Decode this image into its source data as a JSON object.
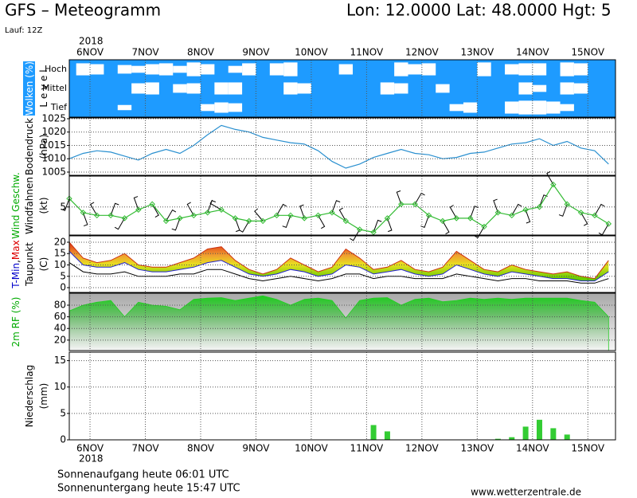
{
  "header": {
    "title": "GFS – Meteogramm",
    "location": "Lon: 12.0000 Lat: 48.0000 Hgt: 5",
    "run": "Lauf: 12Z"
  },
  "x_axis": {
    "xlim": [
      -9,
      228
    ],
    "year": "2018",
    "xticks": [
      {
        "value": 0,
        "label": "6NOV"
      },
      {
        "value": 24,
        "label": "7NOV"
      },
      {
        "value": 48,
        "label": "8NOV"
      },
      {
        "value": 72,
        "label": "9NOV"
      },
      {
        "value": 96,
        "label": "10NOV"
      },
      {
        "value": 120,
        "label": "11NOV"
      },
      {
        "value": 144,
        "label": "12NOV"
      },
      {
        "value": 168,
        "label": "13NOV"
      },
      {
        "value": 192,
        "label": "14NOV"
      },
      {
        "value": 216,
        "label": "15NOV"
      }
    ],
    "x": [
      -9,
      -3,
      3,
      9,
      15,
      21,
      27,
      33,
      39,
      45,
      51,
      57,
      63,
      69,
      75,
      81,
      87,
      93,
      99,
      105,
      111,
      117,
      123,
      129,
      135,
      141,
      147,
      153,
      159,
      165,
      171,
      177,
      183,
      189,
      195,
      201,
      207,
      213,
      219,
      225
    ]
  },
  "chart_data": [
    {
      "type": "cloud_layers",
      "ylabels": [
        [
          {
            "text": "Wolken (%)",
            "color": "#ffffff"
          }
        ],
        [
          {
            "text": "L e v e l",
            "color": "#000000"
          }
        ]
      ],
      "label_background": "#1e9bff",
      "background": "#1e9bff",
      "clear_color": "#ffffff",
      "series": [
        {
          "name": "Hoch",
          "values": [
            100,
            30,
            40,
            100,
            50,
            60,
            40,
            30,
            60,
            20,
            40,
            100,
            60,
            30,
            100,
            30,
            20,
            100,
            100,
            100,
            40,
            100,
            100,
            100,
            20,
            40,
            30,
            100,
            100,
            100,
            20,
            100,
            40,
            30,
            30,
            100,
            20,
            30,
            100,
            100
          ]
        },
        {
          "name": "Mittel",
          "values": [
            100,
            100,
            100,
            100,
            100,
            40,
            30,
            100,
            50,
            40,
            100,
            30,
            30,
            100,
            100,
            100,
            30,
            40,
            100,
            100,
            100,
            100,
            100,
            30,
            40,
            100,
            100,
            50,
            100,
            100,
            100,
            100,
            100,
            30,
            60,
            100,
            30,
            40,
            100,
            100
          ]
        },
        {
          "name": "Tief",
          "values": [
            100,
            100,
            100,
            100,
            70,
            100,
            100,
            100,
            100,
            100,
            60,
            40,
            50,
            100,
            100,
            100,
            100,
            100,
            100,
            100,
            100,
            100,
            100,
            100,
            100,
            100,
            100,
            100,
            60,
            40,
            100,
            100,
            30,
            20,
            20,
            30,
            60,
            100,
            100,
            100
          ]
        }
      ]
    },
    {
      "type": "line",
      "ylabels": [
        [
          {
            "text": "Bodendruck",
            "color": "#000000"
          }
        ],
        [
          {
            "text": "(hPa)",
            "color": "#000000"
          }
        ]
      ],
      "ylim": [
        1003.8,
        1025.3
      ],
      "yticks": [
        1005,
        1010,
        1015,
        1020,
        1025
      ],
      "series": [
        {
          "color": "#2a90d0",
          "values": [
            1010,
            1012,
            1013,
            1012.5,
            1011,
            1009.5,
            1012,
            1013.5,
            1012,
            1015,
            1019,
            1022.5,
            1021,
            1020,
            1018,
            1017,
            1016,
            1015.5,
            1013,
            1009,
            1006.5,
            1008,
            1010.5,
            1012,
            1013.5,
            1012,
            1011.5,
            1010,
            1010.5,
            1012,
            1012.5,
            1014,
            1015.5,
            1016,
            1017.5,
            1015,
            1016.5,
            1014,
            1013,
            1008
          ]
        }
      ]
    },
    {
      "type": "wind",
      "ylabels": [
        [
          {
            "text": "Wind Geschw.",
            "color": "#00aa00"
          }
        ],
        [
          {
            "text": "Windfahnen",
            "color": "#000000"
          }
        ],
        [
          {
            "text": "(kt)",
            "color": "#000000"
          }
        ]
      ],
      "ylim": [
        0,
        10.5
      ],
      "yticks": [
        5
      ],
      "speed": {
        "color": "#33bb33",
        "values": [
          6.5,
          4,
          3.5,
          3.5,
          3,
          4.5,
          5.5,
          2.5,
          3,
          3.5,
          4,
          4.5,
          3,
          2.5,
          2.5,
          3.5,
          3.5,
          3,
          3.5,
          4,
          2.5,
          1,
          0.5,
          3,
          5.5,
          5.5,
          3.5,
          2.5,
          3,
          3,
          1.5,
          4,
          3.5,
          4.5,
          5,
          9,
          5.5,
          4,
          3.5,
          2
        ]
      },
      "direction": {
        "color": "#000000",
        "values": [
          200,
          160,
          330,
          20,
          210,
          340,
          150,
          30,
          200,
          330,
          20,
          300,
          160,
          210,
          320,
          30,
          200,
          340,
          150,
          20,
          330,
          210,
          20,
          160,
          340,
          30,
          200,
          150,
          330,
          20,
          210,
          340,
          30,
          160,
          20,
          330,
          200,
          150,
          30,
          210
        ]
      }
    },
    {
      "type": "temperature",
      "ylabels": [
        [
          {
            "text": "T-Min",
            "color": "#0000cc"
          },
          {
            "text": ",",
            "color": "#000000"
          },
          {
            "text": "Max",
            "color": "#dd0000"
          }
        ],
        [
          {
            "text": "Taupunkt",
            "color": "#000000"
          }
        ],
        [
          {
            "text": "(C)",
            "color": "#000000"
          }
        ]
      ],
      "ylim": [
        -2.1,
        22.8
      ],
      "yticks": [
        0,
        5,
        10,
        15,
        20
      ],
      "series": [
        {
          "name": "Max",
          "color": "#cc3311",
          "values": [
            20,
            13,
            11,
            12,
            15,
            10,
            9,
            9,
            11,
            13,
            17,
            18,
            12,
            8,
            6,
            8,
            13,
            10,
            7,
            9,
            17,
            13,
            8,
            9,
            12,
            8,
            7,
            9,
            16,
            12,
            8,
            7,
            10,
            8,
            7,
            6,
            7,
            5,
            4,
            12
          ]
        },
        {
          "name": "T-Min",
          "color": "#2222cc",
          "values": [
            16,
            10,
            9,
            9,
            11,
            8,
            7,
            7,
            8,
            9,
            11,
            12,
            9,
            6,
            5,
            6,
            8,
            7,
            5,
            6,
            10,
            9,
            6,
            7,
            8,
            6,
            5,
            6,
            10,
            8,
            6,
            5,
            7,
            6,
            5,
            4,
            4,
            3,
            3,
            7
          ]
        },
        {
          "name": "Taupunkt",
          "color": "#000000",
          "values": [
            11,
            7,
            6,
            6,
            7,
            5,
            5,
            5,
            6,
            6,
            8,
            8,
            6,
            4,
            3,
            4,
            5,
            4,
            3,
            4,
            6,
            6,
            4,
            5,
            5,
            4,
            4,
            4,
            6,
            5,
            4,
            3,
            4,
            4,
            3,
            3,
            3,
            2,
            2,
            4
          ]
        }
      ]
    },
    {
      "type": "area",
      "ylabels": [
        [
          {
            "text": "2m RF (%)",
            "color": "#00aa00"
          }
        ]
      ],
      "ylim": [
        2,
        100.5
      ],
      "yticks": [
        20,
        40,
        60,
        80
      ],
      "series": [
        {
          "color": "#22cc22",
          "values": [
            70,
            80,
            85,
            88,
            60,
            85,
            80,
            78,
            72,
            90,
            92,
            93,
            88,
            92,
            96,
            90,
            80,
            90,
            92,
            88,
            58,
            88,
            92,
            93,
            80,
            90,
            92,
            86,
            88,
            92,
            90,
            92,
            90,
            92,
            92,
            92,
            92,
            88,
            85,
            60
          ]
        }
      ]
    },
    {
      "type": "bar",
      "ylabels": [
        [
          {
            "text": "Niederschlag",
            "color": "#000000"
          }
        ],
        [
          {
            "text": "(mm)",
            "color": "#000000"
          }
        ]
      ],
      "ylim": [
        0,
        16.6
      ],
      "yticks": [
        0,
        5,
        10,
        15
      ],
      "series": [
        {
          "color": "#33cc33",
          "values": [
            0,
            0,
            0,
            0,
            0,
            0,
            0,
            0,
            0,
            0,
            0,
            0,
            0,
            0,
            0,
            0,
            0,
            0,
            0,
            0,
            0,
            0,
            2.8,
            1.6,
            0,
            0,
            0,
            0,
            0,
            0,
            0,
            0.2,
            0.5,
            2.5,
            3.8,
            2.2,
            1.0,
            0,
            0,
            0
          ]
        }
      ]
    }
  ],
  "footer": {
    "sunrise": "Sonnenaufgang heute 06:01 UTC",
    "sunset": "Sonnenuntergang heute 15:47 UTC",
    "site": "www.wetterzentrale.de"
  }
}
